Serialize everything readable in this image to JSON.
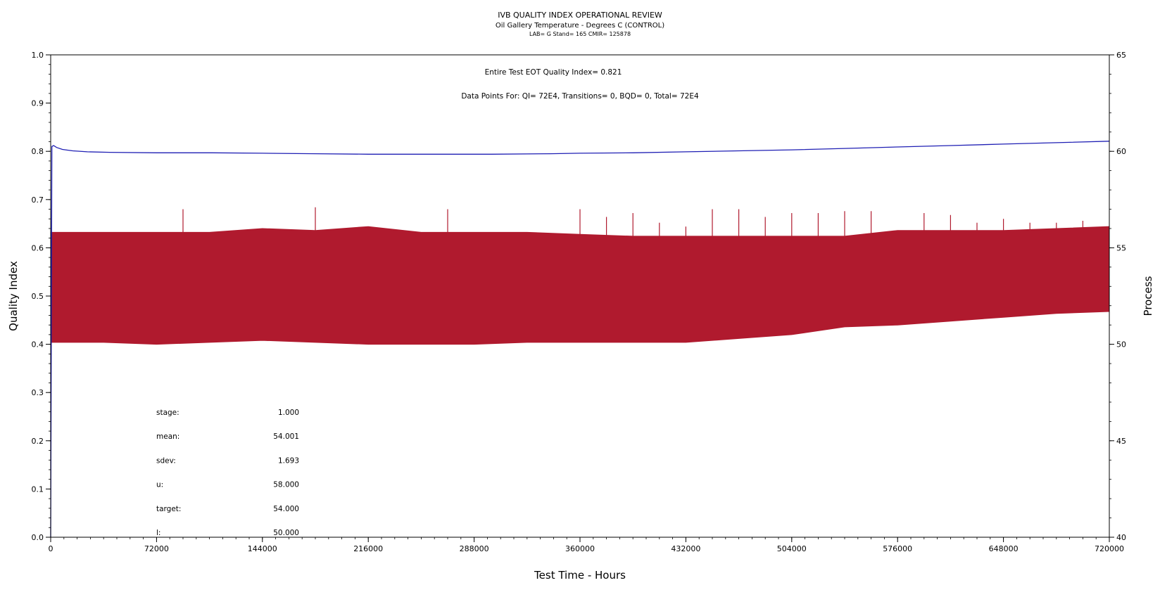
{
  "chart_data": {
    "type": "area",
    "title": "IVB QUALITY INDEX OPERATIONAL REVIEW",
    "subtitle": "Oil Gallery Temperature - Degrees C (CONTROL)",
    "subtitle2": "LAB= G Stand= 165 CMIR= 125878",
    "xlabel": "Test Time - Hours",
    "ylabel": "Quality Index",
    "y2label": "Process",
    "xlim": [
      0,
      720000
    ],
    "ylim": [
      0.0,
      1.0
    ],
    "y2lim": [
      40,
      65
    ],
    "x_ticks": [
      "0",
      "72000",
      "144000",
      "216000",
      "288000",
      "360000",
      "432000",
      "504000",
      "576000",
      "648000",
      "720000"
    ],
    "y_ticks": [
      "0.0",
      "0.1",
      "0.2",
      "0.3",
      "0.4",
      "0.5",
      "0.6",
      "0.7",
      "0.8",
      "0.9",
      "1.0"
    ],
    "y2_ticks": [
      "40",
      "45",
      "50",
      "55",
      "60",
      "65"
    ],
    "annotations": {
      "qi_text": "Entire Test EOT Quality Index=   0.821",
      "points_text": "Data Points For: QI=  72E4, Transitions=     0, BQD=     0, Total=  72E4"
    },
    "stats": [
      {
        "label": "stage:",
        "value": "1.000"
      },
      {
        "label": "mean:",
        "value": "54.001"
      },
      {
        "label": "sdev:",
        "value": "1.693"
      },
      {
        "label": "u:",
        "value": "58.000"
      },
      {
        "label": "target:",
        "value": "54.000"
      },
      {
        "label": "l:",
        "value": "50.000"
      }
    ],
    "series": [
      {
        "name": "Quality Index",
        "axis": "left",
        "color": "#1f1fb4",
        "x": [
          0,
          800,
          2000,
          4000,
          8000,
          15000,
          25000,
          40000,
          72000,
          110000,
          144000,
          180000,
          216000,
          260000,
          300000,
          340000,
          360000,
          396000,
          432000,
          468000,
          504000,
          540000,
          576000,
          612000,
          648000,
          684000,
          720000
        ],
        "values": [
          0.0,
          0.81,
          0.812,
          0.808,
          0.804,
          0.801,
          0.799,
          0.798,
          0.797,
          0.797,
          0.796,
          0.795,
          0.794,
          0.794,
          0.794,
          0.795,
          0.796,
          0.797,
          0.799,
          0.801,
          0.803,
          0.806,
          0.809,
          0.812,
          0.815,
          0.818,
          0.821
        ]
      },
      {
        "name": "Process",
        "axis": "right",
        "color": "#b01a2e",
        "band_x": [
          0,
          36000,
          72000,
          108000,
          144000,
          180000,
          216000,
          252000,
          288000,
          324000,
          360000,
          396000,
          432000,
          468000,
          504000,
          540000,
          576000,
          612000,
          648000,
          684000,
          720000
        ],
        "band_high": [
          55.8,
          55.8,
          55.8,
          55.8,
          56.0,
          55.9,
          56.1,
          55.8,
          55.8,
          55.8,
          55.7,
          55.6,
          55.6,
          55.6,
          55.6,
          55.6,
          55.9,
          55.9,
          55.9,
          56.0,
          56.1
        ],
        "band_low": [
          50.1,
          50.1,
          50.0,
          50.1,
          50.2,
          50.1,
          50.0,
          50.0,
          50.0,
          50.1,
          50.1,
          50.1,
          50.1,
          50.3,
          50.5,
          50.9,
          51.0,
          51.2,
          51.4,
          51.6,
          51.7
        ],
        "spikes_x": [
          90000,
          180000,
          270000,
          360000,
          378000,
          396000,
          414000,
          432000,
          450000,
          468000,
          486000,
          504000,
          522000,
          540000,
          558000,
          594000,
          612000,
          630000,
          648000,
          666000,
          684000,
          702000
        ],
        "spikes_y": [
          57.0,
          57.1,
          57.0,
          57.0,
          56.6,
          56.8,
          56.3,
          56.1,
          57.0,
          57.0,
          56.6,
          56.8,
          56.8,
          56.9,
          56.9,
          56.8,
          56.7,
          56.3,
          56.5,
          56.3,
          56.3,
          56.4
        ]
      }
    ],
    "grid": false,
    "legend": "none"
  }
}
